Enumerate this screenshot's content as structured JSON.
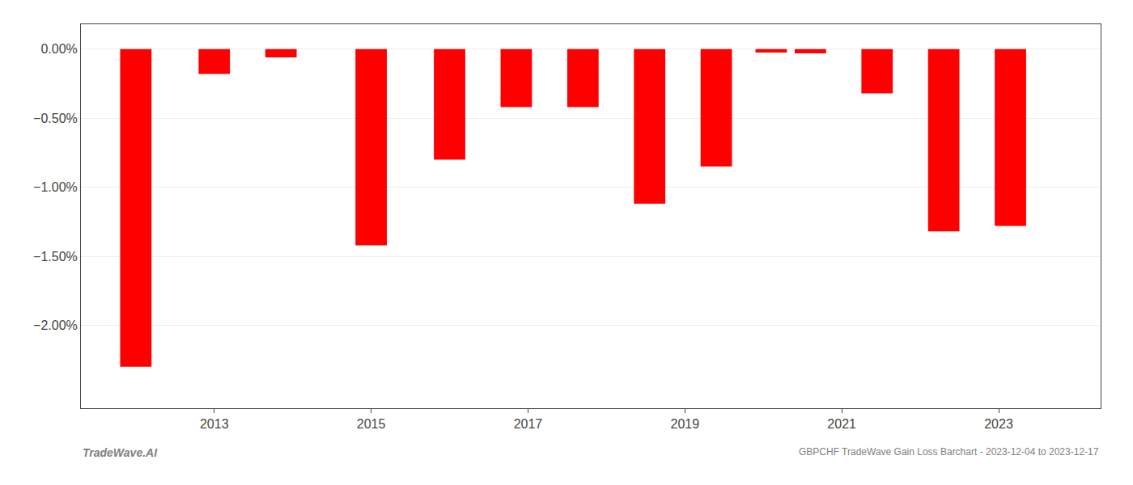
{
  "chart_data": {
    "type": "bar",
    "x": [
      2012,
      2013,
      2013.85,
      2015,
      2016,
      2016.85,
      2017.7,
      2018.55,
      2019.4,
      2020.1,
      2020.6,
      2021.45,
      2022.3,
      2023.15
    ],
    "values": [
      -2.3,
      -0.18,
      -0.06,
      -1.42,
      -0.8,
      -0.42,
      -0.42,
      -1.12,
      -0.85,
      -0.025,
      -0.03,
      -0.32,
      -1.32,
      -1.28
    ],
    "color": "#ff0000",
    "xlim": [
      2011.3,
      2024.3
    ],
    "xticks": [
      2013,
      2015,
      2017,
      2019,
      2021,
      2023
    ],
    "ylim": [
      -2.6,
      0.18
    ],
    "yticks": [
      {
        "value": 0.0,
        "label": "0.00%"
      },
      {
        "value": -0.5,
        "label": "−0.50%"
      },
      {
        "value": -1.0,
        "label": "−1.00%"
      },
      {
        "value": -1.5,
        "label": "−1.50%"
      },
      {
        "value": -2.0,
        "label": "−2.00%"
      }
    ],
    "grid": true,
    "annotations": [
      "TradeWave.AI",
      "GBPCHF TradeWave Gain Loss Barchart - 2023-12-04 to 2023-12-17"
    ]
  }
}
